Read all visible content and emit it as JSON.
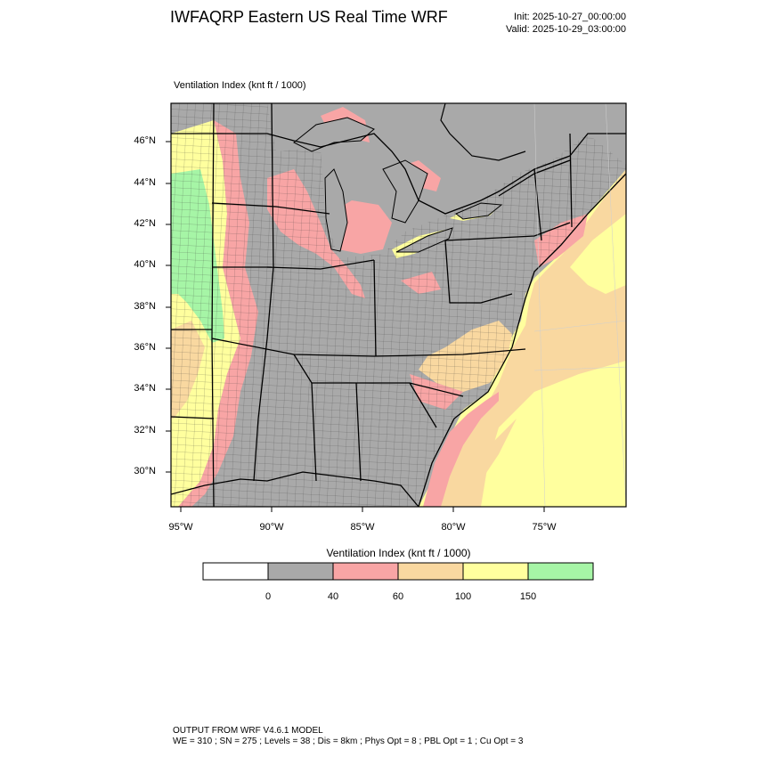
{
  "header": {
    "title": "IWFAQRP Eastern US Real Time WRF",
    "init": "Init: 2025-10-27_00:00:00",
    "valid": "Valid: 2025-10-29_03:00:00"
  },
  "field_label": "Ventilation Index   (knt ft / 1000)",
  "map": {
    "lat_labels": [
      "46°N",
      "44°N",
      "42°N",
      "40°N",
      "38°N",
      "36°N",
      "34°N",
      "32°N",
      "30°N"
    ],
    "lon_labels": [
      "95°W",
      "90°W",
      "85°W",
      "80°W",
      "75°W"
    ],
    "colors": {
      "land_background": "#a9a9a9",
      "class_40_60": "#f8a5a5",
      "class_60_100": "#f9d8a0",
      "class_100_150": "#ffff9e",
      "class_150_plus": "#a6f5a6",
      "boundaries": "#000000"
    }
  },
  "colorbar": {
    "title": "Ventilation Index  (knt ft / 1000)",
    "ticks": [
      "0",
      "40",
      "60",
      "100",
      "150"
    ],
    "bins": [
      {
        "color": "#ffffff"
      },
      {
        "color": "#a9a9a9"
      },
      {
        "color": "#f8a5a5"
      },
      {
        "color": "#f9d8a0"
      },
      {
        "color": "#ffff9e"
      },
      {
        "color": "#a6f5a6"
      }
    ]
  },
  "footer": {
    "line1": "OUTPUT FROM WRF V4.6.1 MODEL",
    "line2": "WE = 310 ; SN = 275 ; Levels = 38 ; Dis = 8km ; Phys Opt = 8 ; PBL Opt = 1 ; Cu Opt = 3"
  }
}
